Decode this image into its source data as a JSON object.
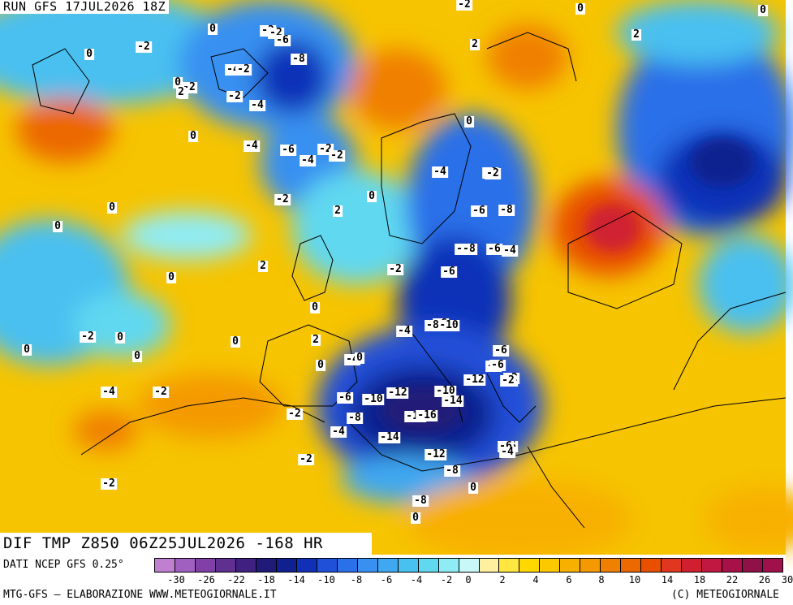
{
  "header": {
    "run_label": "RUN GFS 17JUL2026 18Z"
  },
  "map": {
    "title": "DIF TMP Z850 06Z25JUL2026 -168 HR",
    "contour_labels": [
      "0",
      "-2",
      "-2",
      "-6",
      "-8",
      "-2",
      "0",
      "-4",
      "-2",
      "-4",
      "-6",
      "-4",
      "-2",
      "-2",
      "0",
      "-2",
      "-2",
      "0",
      "-4",
      "-2",
      "-8",
      "-6",
      "-2",
      "-6",
      "-8",
      "-6",
      "-8",
      "-4",
      "-6",
      "-4",
      "-2",
      "-6",
      "-4",
      "-6",
      "-4",
      "-8",
      "-2",
      "-6",
      "-10",
      "-8",
      "-10",
      "-8",
      "-6",
      "-12",
      "-2",
      "-10",
      "-12",
      "-14",
      "-6",
      "-10",
      "-16",
      "-8",
      "-14",
      "-12",
      "-8",
      "-6",
      "-4",
      "-4",
      "-2",
      "0",
      "0",
      "2",
      "2",
      "0",
      "2",
      "0",
      "2",
      "0",
      "2",
      "0",
      "0",
      "2",
      "0",
      "0",
      "-4",
      "-2",
      "-2",
      "-2",
      "-2",
      "0",
      "-2",
      "0",
      "0",
      "0",
      "0",
      "-4",
      "0",
      "0",
      "0"
    ],
    "colors": {
      "background_mean": "#f6c400",
      "cold_core": "#1a2fa0",
      "warm_core": "#e0441e"
    }
  },
  "footer": {
    "data_source": "DATI NCEP GFS 0.25°",
    "credit_left": "MTG-GFS – ELABORAZIONE WWW.METEOGIORNALE.IT",
    "credit_right": "(C) METEOGIORNALE"
  },
  "legend": {
    "colors": [
      "#c080d0",
      "#a060c0",
      "#8040a8",
      "#603090",
      "#402080",
      "#201a78",
      "#10208f",
      "#1030b8",
      "#2050d8",
      "#2a70e8",
      "#3890f0",
      "#40a8f0",
      "#48c0f0",
      "#60d8f0",
      "#90ecf4",
      "#c8f8f8",
      "#fff0a0",
      "#ffe640",
      "#ffd800",
      "#fcc800",
      "#f8b000",
      "#f49a00",
      "#f08000",
      "#ec6800",
      "#e85000",
      "#e03820",
      "#d02030",
      "#c01840",
      "#a81048",
      "#901048",
      "#a0104a"
    ],
    "tick_labels": [
      "-30",
      "-26",
      "-22",
      "-18",
      "-14",
      "-10",
      "-8",
      "-6",
      "-4",
      "-2",
      "0",
      "2",
      "4",
      "6",
      "8",
      "10",
      "14",
      "18",
      "22",
      "26",
      "30"
    ]
  }
}
